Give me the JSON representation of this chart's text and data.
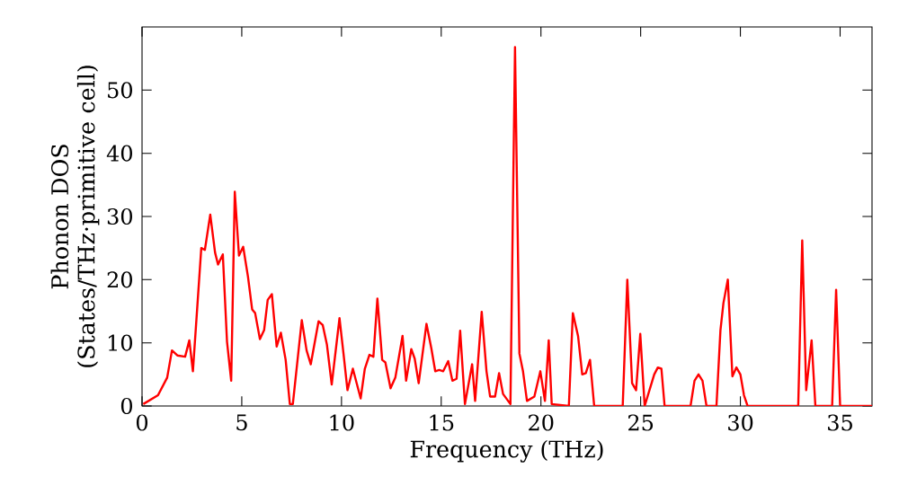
{
  "chart_data": {
    "type": "line",
    "xlabel": "Frequency (THz)",
    "ylabel": "Phonon DOS (States/THz·primitive cell)",
    "xlim": [
      0,
      36.6
    ],
    "ylim": [
      0,
      60
    ],
    "xticks": [
      0,
      5,
      10,
      15,
      20,
      25,
      30,
      35
    ],
    "yticks": [
      0,
      10,
      20,
      30,
      40,
      50
    ],
    "grid": false,
    "marker": "none",
    "line_style": "solid",
    "series": [
      {
        "color": "#ff0000",
        "x": [
          0.06,
          0.8,
          1.26,
          1.5,
          1.77,
          2.16,
          2.37,
          2.55,
          2.97,
          3.15,
          3.42,
          3.66,
          3.81,
          4.05,
          4.26,
          4.47,
          4.65,
          4.86,
          5.07,
          5.31,
          5.52,
          5.67,
          5.91,
          6.12,
          6.3,
          6.51,
          6.75,
          6.96,
          7.2,
          7.41,
          7.56,
          8.01,
          8.25,
          8.46,
          8.85,
          9.06,
          9.27,
          9.51,
          9.9,
          10.1,
          10.3,
          10.57,
          10.96,
          11.17,
          11.4,
          11.6,
          11.8,
          12.04,
          12.2,
          12.46,
          12.7,
          13.06,
          13.24,
          13.5,
          13.67,
          13.87,
          14.26,
          14.5,
          14.7,
          14.9,
          15.1,
          15.35,
          15.56,
          15.77,
          15.95,
          16.19,
          16.55,
          16.7,
          17.03,
          17.27,
          17.45,
          17.7,
          17.9,
          18.1,
          18.47,
          18.7,
          18.92,
          19.1,
          19.3,
          19.67,
          19.97,
          20.2,
          20.39,
          20.54,
          21.4,
          21.6,
          21.86,
          22.07,
          22.25,
          22.46,
          22.67,
          24.1,
          24.33,
          24.57,
          24.77,
          24.98,
          25.2,
          25.68,
          25.86,
          26.04,
          26.2,
          27.5,
          27.7,
          27.9,
          28.1,
          28.3,
          28.8,
          29.0,
          29.15,
          29.37,
          29.6,
          29.8,
          30.0,
          30.18,
          30.36,
          32.9,
          33.1,
          33.3,
          33.57,
          33.76,
          34.6,
          34.8,
          35.0,
          36.6
        ],
        "values": [
          0.3,
          1.7,
          4.5,
          8.8,
          8.0,
          7.8,
          10.4,
          5.5,
          25,
          24.7,
          30.3,
          24.3,
          22.4,
          24,
          10.2,
          4,
          33.9,
          23.8,
          25.2,
          20.5,
          15.3,
          14.7,
          10.6,
          12,
          16.8,
          17.7,
          9.4,
          11.6,
          7.3,
          0.3,
          0.3,
          13.6,
          8.8,
          6.6,
          13.4,
          12.8,
          9.7,
          3.4,
          13.9,
          8.3,
          2.5,
          5.9,
          1.2,
          5.9,
          8.1,
          7.8,
          17,
          7.3,
          6.9,
          2.8,
          4.5,
          11.1,
          4,
          9,
          7.5,
          3.6,
          13,
          9.2,
          5.5,
          5.7,
          5.5,
          7.1,
          4,
          4.3,
          11.9,
          0.3,
          6.6,
          0.8,
          14.9,
          5.5,
          1.5,
          1.5,
          5.2,
          1.9,
          0.3,
          56.8,
          8.3,
          5.5,
          0.8,
          1.5,
          5.5,
          0.8,
          10.4,
          0.3,
          0,
          14.7,
          11.1,
          5,
          5.2,
          7.3,
          0,
          0,
          20,
          3.6,
          2.5,
          11.4,
          0,
          5,
          6.1,
          5.9,
          0,
          0,
          4,
          5,
          4,
          0,
          0,
          12,
          16.3,
          20,
          4.7,
          6.1,
          5,
          1.7,
          0,
          0,
          26.2,
          2.5,
          10.4,
          0,
          0,
          18.4,
          0,
          0
        ]
      }
    ]
  }
}
